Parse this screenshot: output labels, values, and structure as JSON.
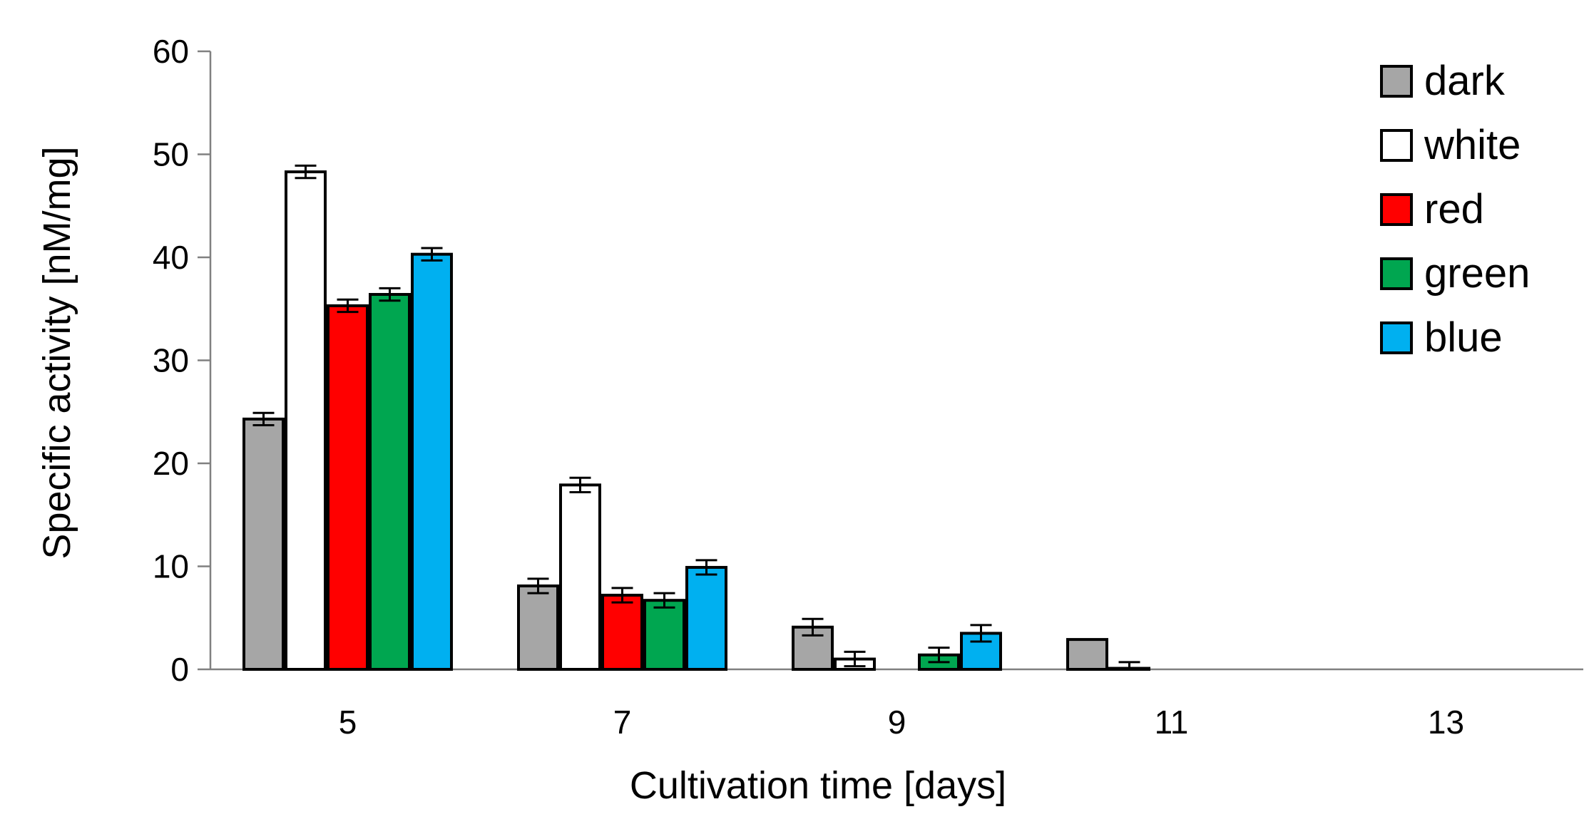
{
  "chart_data": {
    "type": "bar",
    "title": "",
    "xlabel": "Cultivation time [days]",
    "ylabel": "Specific activity [nM/mg]",
    "ylim": [
      0,
      60
    ],
    "yticks": [
      0,
      10,
      20,
      30,
      40,
      50,
      60
    ],
    "categories": [
      "5",
      "7",
      "9",
      "11",
      "13"
    ],
    "legend_position": "top-right",
    "series": [
      {
        "name": "dark",
        "color": "#a6a6a6",
        "values": [
          24.3,
          8.1,
          4.1,
          2.9,
          0
        ],
        "errors": [
          0.6,
          0.7,
          0.8,
          0,
          0
        ]
      },
      {
        "name": "white",
        "color": "#ffffff",
        "values": [
          48.3,
          17.9,
          1.0,
          0.1,
          0
        ],
        "errors": [
          0.6,
          0.7,
          0.7,
          0.6,
          0
        ]
      },
      {
        "name": "red",
        "color": "#ff0000",
        "values": [
          35.3,
          7.2,
          0,
          0,
          0
        ],
        "errors": [
          0.6,
          0.7,
          0,
          0,
          0
        ]
      },
      {
        "name": "green",
        "color": "#00a650",
        "values": [
          36.4,
          6.7,
          1.4,
          0,
          0
        ],
        "errors": [
          0.6,
          0.7,
          0.7,
          0,
          0
        ]
      },
      {
        "name": "blue",
        "color": "#00b0f0",
        "values": [
          40.3,
          9.9,
          3.5,
          0,
          0
        ],
        "errors": [
          0.6,
          0.7,
          0.8,
          0,
          0
        ]
      }
    ]
  }
}
